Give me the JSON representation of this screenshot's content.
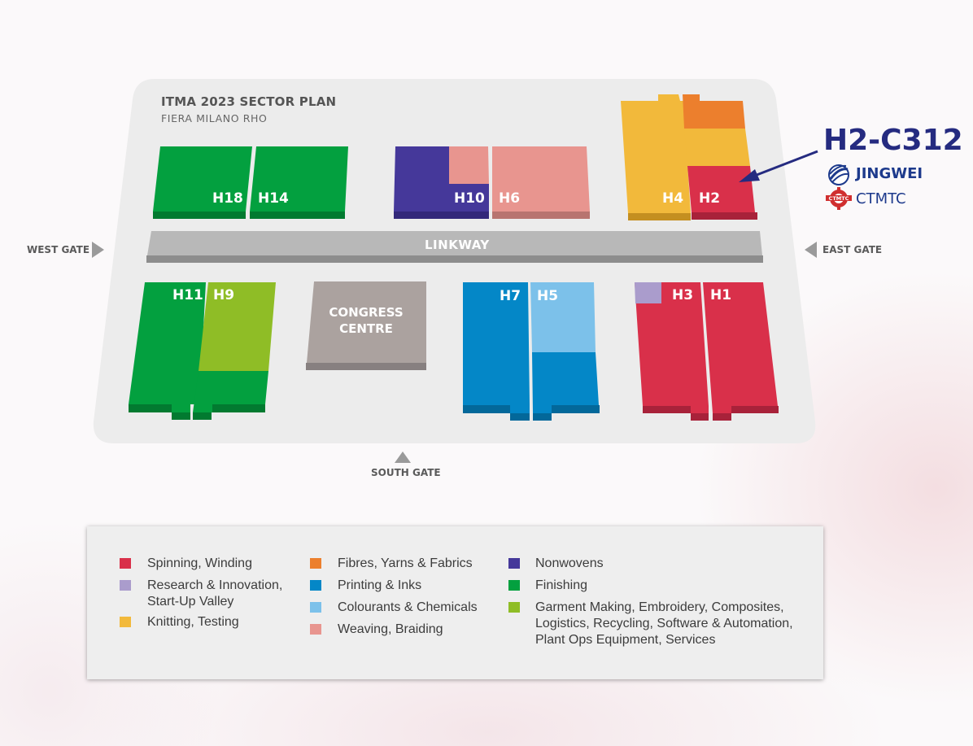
{
  "plan": {
    "title": "ITMA 2023 SECTOR PLAN",
    "subtitle": "FIERA MILANO RHO"
  },
  "gates": {
    "west": "WEST GATE",
    "east": "EAST GATE",
    "south": "SOUTH GATE"
  },
  "linkway": "LINKWAY",
  "halls": {
    "h18": "H18",
    "h14": "H14",
    "h10": "H10",
    "h6": "H6",
    "h4": "H4",
    "h2": "H2",
    "h11": "H11",
    "h9": "H9",
    "h7": "H7",
    "h5": "H5",
    "h3": "H3",
    "h1": "H1"
  },
  "congress": {
    "line1": "CONGRESS",
    "line2": "CENTRE"
  },
  "booth": {
    "code": "H2-C312",
    "brand1": "JINGWEI",
    "brand2": "CTMTC",
    "brand2_logo_text": "CTMTC"
  },
  "colors": {
    "spinning": "#d9304a",
    "research": "#aa9ccc",
    "knitting": "#f2b93b",
    "fibres": "#ec7f2d",
    "printing": "#0487c7",
    "colourants": "#7cc1ea",
    "weaving": "#e8958f",
    "nonwovens": "#45389a",
    "finishing": "#03a03f",
    "garment": "#8fbd26",
    "congress": "#aba29f",
    "linkway": "#b8b8b8",
    "booth": "#252b80"
  },
  "legend": {
    "col1": [
      {
        "label": "Spinning, Winding",
        "color": "#d9304a"
      },
      {
        "label_lines": [
          "Research & Innovation,",
          "Start-Up Valley"
        ],
        "color": "#aa9ccc"
      },
      {
        "label": "Knitting, Testing",
        "color": "#f2b93b"
      }
    ],
    "col2": [
      {
        "label": "Fibres, Yarns & Fabrics",
        "color": "#ec7f2d"
      },
      {
        "label": "Printing & Inks",
        "color": "#0487c7"
      },
      {
        "label": "Colourants & Chemicals",
        "color": "#7cc1ea"
      },
      {
        "label": "Weaving, Braiding",
        "color": "#e8958f"
      }
    ],
    "col3": [
      {
        "label": "Nonwovens",
        "color": "#45389a"
      },
      {
        "label": "Finishing",
        "color": "#03a03f"
      },
      {
        "label_lines": [
          "Garment Making, Embroidery, Composites,",
          "Logistics, Recycling, Software & Automation,",
          "Plant Ops Equipment, Services"
        ],
        "color": "#8fbd26"
      }
    ]
  }
}
